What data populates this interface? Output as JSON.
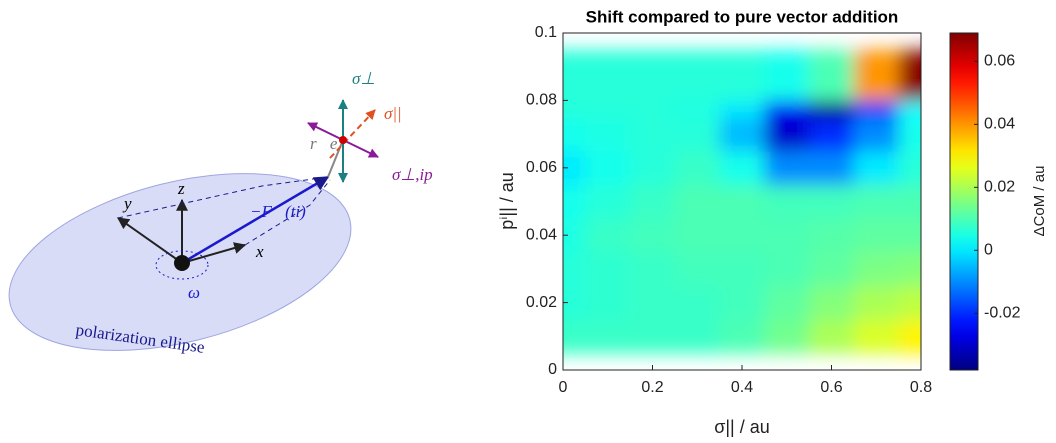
{
  "diagram": {
    "sigma_perp": "σ⊥",
    "sigma_par": "σ||",
    "sigma_perp_ip": "σ⊥,ip",
    "r_e": "r⃗e",
    "axis_y": "y",
    "axis_z": "z",
    "axis_x": "x",
    "force": "−F⃗(ti)",
    "omega": "ω",
    "ellipse": "polarization ellipse"
  },
  "chart_data": {
    "type": "heatmap",
    "title": "Shift compared to pure vector addition",
    "x_label": "σ|| / au",
    "y_label": "pⁱ|| / au",
    "colorbar_label": "ΔCoM / au",
    "x": [
      0,
      0.1,
      0.2,
      0.3,
      0.4,
      0.5,
      0.6,
      0.7,
      0.8
    ],
    "y": [
      0,
      0.01,
      0.02,
      0.03,
      0.04,
      0.05,
      0.06,
      0.07,
      0.08,
      0.09,
      0.1
    ],
    "z": [
      [
        0.008,
        0.008,
        0.008,
        0.008,
        0.01,
        0.015,
        0.022,
        0.028,
        0.032
      ],
      [
        0.008,
        0.008,
        0.008,
        0.008,
        0.01,
        0.014,
        0.02,
        0.025,
        0.03
      ],
      [
        0.006,
        0.007,
        0.008,
        0.008,
        0.009,
        0.012,
        0.016,
        0.02,
        0.022
      ],
      [
        0.006,
        0.007,
        0.008,
        0.009,
        0.009,
        0.01,
        0.012,
        0.015,
        0.016
      ],
      [
        0.005,
        0.008,
        0.009,
        0.01,
        0.01,
        0.01,
        0.011,
        0.012,
        0.012
      ],
      [
        0.004,
        0.006,
        0.008,
        0.01,
        0.01,
        0.009,
        0.009,
        0.01,
        0.01
      ],
      [
        0.0,
        0.004,
        0.006,
        0.008,
        0.004,
        -0.01,
        -0.01,
        0.0,
        0.006
      ],
      [
        0.004,
        0.005,
        0.006,
        0.006,
        -0.005,
        -0.03,
        -0.02,
        -0.01,
        0.004
      ],
      [
        0.006,
        0.006,
        0.006,
        0.005,
        0.0,
        -0.025,
        -0.038,
        -0.02,
        0.002
      ],
      [
        0.006,
        0.006,
        0.006,
        0.006,
        0.004,
        -0.01,
        -0.025,
        -0.02,
        0.03
      ],
      [
        0.006,
        0.006,
        0.006,
        0.006,
        0.006,
        0.004,
        0.01,
        0.04,
        0.068
      ]
    ],
    "xlim": [
      0,
      0.8
    ],
    "ylim": [
      0,
      0.1
    ],
    "zlim": [
      -0.038,
      0.069
    ],
    "xticks": [
      0,
      0.2,
      0.4,
      0.6,
      0.8
    ],
    "yticks": [
      0,
      0.02,
      0.04,
      0.06,
      0.08,
      0.1
    ],
    "zticks": [
      -0.02,
      0,
      0.02,
      0.04,
      0.06
    ],
    "colormap": "jet"
  }
}
